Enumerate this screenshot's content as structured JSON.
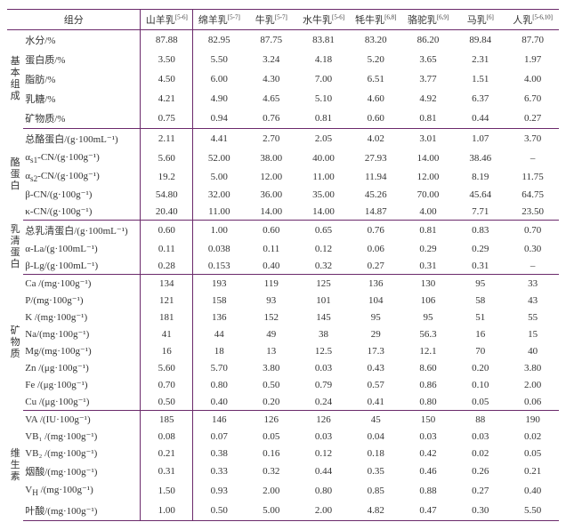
{
  "header": {
    "group": "组分",
    "cols": [
      "山羊乳",
      "绵羊乳",
      "牛乳",
      "水牛乳",
      "牦牛乳",
      "骆驼乳",
      "马乳",
      "人乳"
    ],
    "refs": [
      "[5-6]",
      "[5-7]",
      "[5-7]",
      "[5-6]",
      "[6,8]",
      "[6,9]",
      "[6]",
      "[5-6,10]"
    ]
  },
  "sections": [
    {
      "side": "基本组成",
      "rows": [
        {
          "l": "水分/%",
          "v": [
            "87.88",
            "82.95",
            "87.75",
            "83.81",
            "83.20",
            "86.20",
            "89.84",
            "87.70"
          ]
        },
        {
          "l": "蛋白质/%",
          "v": [
            "3.50",
            "5.50",
            "3.24",
            "4.18",
            "5.20",
            "3.65",
            "2.31",
            "1.97"
          ]
        },
        {
          "l": "脂肪/%",
          "v": [
            "4.50",
            "6.00",
            "4.30",
            "7.00",
            "6.51",
            "3.77",
            "1.51",
            "4.00"
          ]
        },
        {
          "l": "乳糖/%",
          "v": [
            "4.21",
            "4.90",
            "4.65",
            "5.10",
            "4.60",
            "4.92",
            "6.37",
            "6.70"
          ]
        },
        {
          "l": "矿物质/%",
          "v": [
            "0.75",
            "0.94",
            "0.76",
            "0.81",
            "0.60",
            "0.81",
            "0.44",
            "0.27"
          ]
        }
      ]
    },
    {
      "side": "酪蛋白",
      "rows": [
        {
          "l": "总酪蛋白/(g·100mL⁻¹)",
          "v": [
            "2.11",
            "4.41",
            "2.70",
            "2.05",
            "4.02",
            "3.01",
            "1.07",
            "3.70"
          ]
        },
        {
          "l": "α<sub>s1</sub>-CN/(g·100g⁻¹)",
          "v": [
            "5.60",
            "52.00",
            "38.00",
            "40.00",
            "27.93",
            "14.00",
            "38.46",
            "–"
          ]
        },
        {
          "l": "α<sub>s2</sub>-CN/(g·100g⁻¹)",
          "v": [
            "19.2",
            "5.00",
            "12.00",
            "11.00",
            "11.94",
            "12.00",
            "8.19",
            "11.75"
          ]
        },
        {
          "l": "β-CN/(g·100g⁻¹)",
          "v": [
            "54.80",
            "32.00",
            "36.00",
            "35.00",
            "45.26",
            "70.00",
            "45.64",
            "64.75"
          ]
        },
        {
          "l": "κ-CN/(g·100g⁻¹)",
          "v": [
            "20.40",
            "11.00",
            "14.00",
            "14.00",
            "14.87",
            "4.00",
            "7.71",
            "23.50"
          ]
        }
      ]
    },
    {
      "side": "乳清蛋白",
      "rows": [
        {
          "l": "总乳清蛋白/(g·100mL⁻¹)",
          "v": [
            "0.60",
            "1.00",
            "0.60",
            "0.65",
            "0.76",
            "0.81",
            "0.83",
            "0.70"
          ]
        },
        {
          "l": "α-La/(g·100mL⁻¹)",
          "v": [
            "0.11",
            "0.038",
            "0.11",
            "0.12",
            "0.06",
            "0.29",
            "0.29",
            "0.30"
          ]
        },
        {
          "l": "β-Lg/(g·100mL⁻¹)",
          "v": [
            "0.28",
            "0.153",
            "0.40",
            "0.32",
            "0.27",
            "0.31",
            "0.31",
            "–"
          ]
        }
      ]
    },
    {
      "side": "矿物质",
      "rows": [
        {
          "l": "Ca /(mg·100g⁻¹)",
          "v": [
            "134",
            "193",
            "119",
            "125",
            "136",
            "130",
            "95",
            "33"
          ]
        },
        {
          "l": "P/(mg·100g⁻¹)",
          "v": [
            "121",
            "158",
            "93",
            "101",
            "104",
            "106",
            "58",
            "43"
          ]
        },
        {
          "l": "K /(mg·100g⁻¹)",
          "v": [
            "181",
            "136",
            "152",
            "145",
            "95",
            "95",
            "51",
            "55"
          ]
        },
        {
          "l": "Na/(mg·100g⁻¹)",
          "v": [
            "41",
            "44",
            "49",
            "38",
            "29",
            "56.3",
            "16",
            "15"
          ]
        },
        {
          "l": "Mg/(mg·100g⁻¹)",
          "v": [
            "16",
            "18",
            "13",
            "12.5",
            "17.3",
            "12.1",
            "70",
            "40"
          ]
        },
        {
          "l": "Zn /(μg·100g⁻¹)",
          "v": [
            "5.60",
            "5.70",
            "3.80",
            "0.03",
            "0.43",
            "8.60",
            "0.20",
            "3.80"
          ]
        },
        {
          "l": "Fe /(μg·100g⁻¹)",
          "v": [
            "0.70",
            "0.80",
            "0.50",
            "0.79",
            "0.57",
            "0.86",
            "0.10",
            "2.00"
          ]
        },
        {
          "l": "Cu /(μg·100g⁻¹)",
          "v": [
            "0.50",
            "0.40",
            "0.20",
            "0.24",
            "0.41",
            "0.80",
            "0.05",
            "0.06"
          ]
        }
      ]
    },
    {
      "side": "维生素",
      "rows": [
        {
          "l": "VA /(IU·100g⁻¹)",
          "v": [
            "185",
            "146",
            "126",
            "126",
            "45",
            "150",
            "88",
            "190"
          ]
        },
        {
          "l": "VB₁ /(mg·100g⁻¹)",
          "v": [
            "0.08",
            "0.07",
            "0.05",
            "0.03",
            "0.04",
            "0.03",
            "0.03",
            "0.02"
          ]
        },
        {
          "l": "VB₂ /(mg·100g⁻¹)",
          "v": [
            "0.21",
            "0.38",
            "0.16",
            "0.12",
            "0.18",
            "0.42",
            "0.02",
            "0.05"
          ]
        },
        {
          "l": "烟酸/(mg·100g⁻¹)",
          "v": [
            "0.31",
            "0.33",
            "0.32",
            "0.44",
            "0.35",
            "0.46",
            "0.26",
            "0.21"
          ]
        },
        {
          "l": "V<sub>H</sub> /(mg·100g⁻¹)",
          "v": [
            "1.50",
            "0.93",
            "2.00",
            "0.80",
            "0.85",
            "0.88",
            "0.27",
            "0.40"
          ]
        },
        {
          "l": "叶酸/(mg·100g⁻¹)",
          "v": [
            "1.00",
            "0.50",
            "5.00",
            "2.00",
            "4.82",
            "0.47",
            "0.30",
            "5.50"
          ]
        }
      ]
    }
  ]
}
